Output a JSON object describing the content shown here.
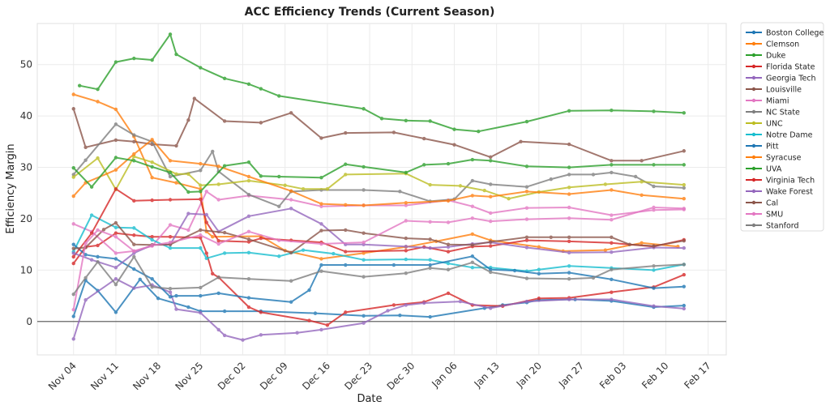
{
  "chart_data": {
    "type": "line",
    "title": "ACC Efficiency Trends (Current Season)",
    "xlabel": "Date",
    "ylabel": "Efficiency Margin",
    "ylim": [
      -6.5,
      58
    ],
    "xlim_days_from_nov04": [
      -6,
      108
    ],
    "yticks": [
      0,
      10,
      20,
      30,
      40,
      50
    ],
    "xticks": [
      "Nov 04",
      "Nov 11",
      "Nov 18",
      "Nov 25",
      "Dec 02",
      "Dec 09",
      "Dec 16",
      "Dec 23",
      "Dec 30",
      "Jan 06",
      "Jan 13",
      "Jan 20",
      "Jan 27",
      "Feb 03",
      "Feb 10",
      "Feb 17"
    ],
    "grid": true,
    "reference_line_y": 0,
    "legend_position": "outside-right",
    "series": [
      {
        "name": "Boston College",
        "color": "#1f77b4",
        "x": [
          0,
          2,
          4,
          7,
          11,
          14,
          19,
          21,
          25,
          31,
          40,
          48,
          54,
          59,
          68,
          71,
          75,
          77,
          83,
          89,
          96,
          101
        ],
        "y": [
          1,
          8,
          6,
          1.8,
          8.2,
          4.5,
          2.8,
          2,
          2,
          2,
          1.6,
          1.1,
          1.2,
          0.9,
          2.6,
          3.2,
          3.7,
          4.2,
          4.3,
          4,
          2.8,
          3.1
        ]
      },
      {
        "name": "Clemson",
        "color": "#ff7f0e",
        "x": [
          0,
          4,
          7,
          10,
          13,
          17,
          21,
          22,
          23,
          31,
          35,
          41,
          48,
          55,
          60,
          66,
          69,
          77,
          81,
          88,
          94,
          100
        ],
        "y": [
          44.2,
          42.8,
          41.3,
          36,
          28,
          27,
          25.8,
          17.5,
          16.5,
          16.6,
          13.8,
          12.2,
          13.3,
          14.5,
          15.6,
          17,
          15.8,
          14.5,
          13.7,
          13.9,
          15.3,
          14.6
        ]
      },
      {
        "name": "Duke",
        "color": "#2ca02c",
        "x": [
          1,
          4,
          7,
          10,
          13,
          16,
          17,
          21,
          25,
          29,
          31,
          34,
          48,
          51,
          55,
          59,
          63,
          67,
          75,
          82,
          89,
          96,
          101
        ],
        "y": [
          45.9,
          45.2,
          50.5,
          51.2,
          50.9,
          55.9,
          52,
          49.4,
          47.3,
          46.2,
          45.3,
          43.9,
          41.4,
          39.5,
          39.1,
          39,
          37.4,
          37,
          38.9,
          41,
          41.1,
          40.9,
          40.6
        ]
      },
      {
        "name": "Florida State",
        "color": "#d62728",
        "x": [
          0,
          2,
          4,
          7,
          10,
          13,
          16,
          21,
          22,
          23,
          24,
          29,
          31,
          39,
          42,
          45,
          53,
          58,
          62,
          66,
          71,
          77,
          82,
          89,
          96,
          101
        ],
        "y": [
          11.3,
          14.5,
          14.8,
          17.2,
          16.8,
          16.5,
          16.5,
          16.3,
          13.3,
          9.3,
          8.6,
          2.8,
          1.8,
          0.2,
          -0.7,
          1.8,
          3.2,
          3.8,
          5.5,
          3.2,
          3,
          4.5,
          4.6,
          5.7,
          6.7,
          9.1
        ]
      },
      {
        "name": "Georgia Tech",
        "color": "#9467bd",
        "x": [
          0,
          2,
          7,
          10,
          13,
          16,
          17,
          21,
          24,
          25,
          28,
          31,
          37,
          41,
          48,
          52,
          55,
          58,
          64,
          69,
          75,
          82,
          89,
          96,
          101
        ],
        "y": [
          -3.4,
          4.2,
          8.3,
          6.5,
          7.1,
          5.7,
          2.4,
          1.7,
          -1.6,
          -2.7,
          -3.6,
          -2.6,
          -2.2,
          -1.6,
          -0.3,
          2.1,
          3.2,
          3.6,
          3.9,
          2.6,
          3.9,
          4.3,
          4.3,
          3,
          2.5
        ]
      },
      {
        "name": "Louisville",
        "color": "#8c564b",
        "x": [
          0,
          2,
          7,
          10,
          13,
          17,
          19,
          20,
          25,
          31,
          36,
          41,
          45,
          53,
          58,
          63,
          69,
          74,
          82,
          89,
          94,
          101
        ],
        "y": [
          41.4,
          33.9,
          35.3,
          35,
          34.5,
          34.2,
          39.2,
          43.4,
          39,
          38.7,
          40.6,
          35.7,
          36.7,
          36.8,
          35.6,
          34.4,
          32,
          35,
          34.5,
          31.3,
          31.3,
          33.2
        ]
      },
      {
        "name": "Miami",
        "color": "#e377c2",
        "x": [
          0,
          3,
          7,
          10,
          13,
          16,
          19,
          22,
          24,
          29,
          36,
          41,
          48,
          55,
          62,
          66,
          69,
          75,
          82,
          89,
          96,
          101
        ],
        "y": [
          19,
          17.5,
          13.3,
          13.7,
          14.7,
          18.8,
          17.8,
          25.3,
          23.7,
          24.5,
          23.7,
          22.4,
          22.6,
          22.6,
          23.6,
          22.4,
          21.1,
          22.1,
          22.2,
          20.7,
          21.7,
          21.8
        ]
      },
      {
        "name": "NC State",
        "color": "#7f7f7f",
        "x": [
          0,
          2,
          7,
          10,
          13,
          16,
          21,
          23,
          24,
          29,
          34,
          36,
          41,
          48,
          54,
          59,
          63,
          66,
          69,
          75,
          79,
          82,
          86,
          89,
          93,
          96,
          101
        ],
        "y": [
          28.6,
          31.4,
          38.4,
          36.3,
          35,
          28.2,
          29.4,
          33.1,
          29.2,
          24.7,
          22.4,
          25.3,
          25.6,
          25.6,
          25.3,
          23.4,
          23.8,
          27.4,
          26.7,
          26.2,
          27.7,
          28.6,
          28.6,
          29,
          28.2,
          26.3,
          26
        ]
      },
      {
        "name": "UNC",
        "color": "#bcbd22",
        "x": [
          0,
          4,
          7,
          10,
          13,
          17,
          19,
          21,
          24,
          29,
          35,
          38,
          42,
          45,
          55,
          59,
          64,
          68,
          72,
          77,
          82,
          88,
          94,
          101
        ],
        "y": [
          28.1,
          31.8,
          25.7,
          32.1,
          31,
          28.7,
          28.7,
          26.5,
          26.7,
          27.4,
          26.5,
          25.8,
          25.8,
          28.6,
          28.8,
          26.6,
          26.4,
          25.5,
          23.9,
          25.2,
          26.1,
          26.7,
          27.2,
          26.6
        ]
      },
      {
        "name": "Notre Dame",
        "color": "#17becf",
        "x": [
          0,
          3,
          7,
          10,
          13,
          16,
          21,
          22,
          25,
          29,
          34,
          38,
          43,
          48,
          55,
          59,
          62,
          66,
          69,
          75,
          77,
          82,
          89,
          96,
          101
        ],
        "y": [
          13.6,
          20.7,
          18.3,
          18.2,
          15.9,
          14.3,
          14.3,
          12.3,
          13.3,
          13.4,
          12.7,
          13.9,
          13.2,
          12,
          12.1,
          12,
          11.3,
          10.5,
          10.5,
          9.8,
          10.1,
          10.8,
          10.4,
          10,
          11.1
        ]
      },
      {
        "name": "Pitt",
        "color": "#1f77b4",
        "x": [
          0,
          2,
          4,
          7,
          10,
          13,
          16,
          17,
          21,
          24,
          29,
          36,
          39,
          41,
          45,
          53,
          59,
          66,
          69,
          73,
          77,
          82,
          89,
          96,
          101
        ],
        "y": [
          15,
          13,
          12.6,
          12.2,
          10.2,
          8.3,
          4.8,
          5,
          5,
          5.5,
          4.6,
          3.8,
          6.1,
          11,
          11,
          11,
          11,
          12.7,
          10.1,
          9.9,
          9.3,
          9.5,
          8.2,
          6.5,
          6.8
        ]
      },
      {
        "name": "Syracuse",
        "color": "#ff7f0e",
        "x": [
          0,
          2,
          7,
          10,
          13,
          16,
          21,
          24,
          29,
          36,
          41,
          45,
          48,
          55,
          62,
          66,
          69,
          75,
          82,
          89,
          94,
          101
        ],
        "y": [
          24.4,
          27,
          29.5,
          32.6,
          35.4,
          31.3,
          30.7,
          30.2,
          28.2,
          25.4,
          22.9,
          22.7,
          22.6,
          23.1,
          23.5,
          24.5,
          24.3,
          25.3,
          24.8,
          25.6,
          24.6,
          23.9
        ]
      },
      {
        "name": "UVA",
        "color": "#2ca02c",
        "x": [
          0,
          3,
          7,
          10,
          13,
          16,
          19,
          21,
          25,
          29,
          31,
          34,
          41,
          45,
          48,
          55,
          58,
          62,
          66,
          69,
          75,
          82,
          89,
          96,
          101
        ],
        "y": [
          29.9,
          26.2,
          31.9,
          31.3,
          30.1,
          29,
          25.2,
          25.3,
          30.3,
          31,
          28.3,
          28.2,
          28,
          30.6,
          30.1,
          29,
          30.5,
          30.7,
          31.5,
          31.3,
          30.2,
          30,
          30.5,
          30.5,
          30.5
        ]
      },
      {
        "name": "Virginia Tech",
        "color": "#d62728",
        "x": [
          0,
          3,
          7,
          10,
          13,
          16,
          21,
          22,
          24,
          29,
          31,
          36,
          41,
          45,
          55,
          58,
          62,
          66,
          69,
          75,
          82,
          89,
          96,
          101
        ],
        "y": [
          12.6,
          17.2,
          25.8,
          23.5,
          23.6,
          23.7,
          23.8,
          19.3,
          15.7,
          15.5,
          16.2,
          15.8,
          15.4,
          13.6,
          13.8,
          14.5,
          13.6,
          14.6,
          14.7,
          15.8,
          15.6,
          15.3,
          14.6,
          15.9
        ]
      },
      {
        "name": "Wake Forest",
        "color": "#9467bd",
        "x": [
          0,
          3,
          7,
          10,
          13,
          16,
          19,
          22,
          24,
          29,
          36,
          41,
          45,
          48,
          55,
          59,
          62,
          66,
          69,
          75,
          82,
          89,
          96,
          101
        ],
        "y": [
          13.3,
          12,
          10.5,
          13.3,
          14.9,
          15,
          21,
          20.8,
          17.5,
          20.5,
          22,
          19,
          15,
          15,
          14.6,
          14.3,
          14.5,
          15.1,
          15.4,
          14.4,
          13.4,
          13.5,
          14.4,
          14.3
        ]
      },
      {
        "name": "Cal",
        "color": "#8c564b",
        "x": [
          0,
          2,
          5,
          7,
          10,
          13,
          16,
          21,
          25,
          29,
          36,
          41,
          45,
          48,
          55,
          59,
          62,
          66,
          69,
          75,
          79,
          82,
          89,
          92,
          96,
          101
        ],
        "y": [
          14.2,
          14.4,
          17.9,
          19.2,
          15,
          14.9,
          15,
          17.8,
          17.3,
          16,
          13.4,
          17.7,
          17.8,
          17.2,
          16.2,
          16,
          15,
          14.9,
          15.5,
          16.4,
          16.4,
          16.4,
          16.4,
          15,
          14.7,
          15.7
        ]
      },
      {
        "name": "SMU",
        "color": "#e377c2",
        "x": [
          0,
          2,
          4,
          7,
          10,
          13,
          16,
          21,
          24,
          29,
          34,
          41,
          48,
          55,
          59,
          62,
          66,
          69,
          75,
          82,
          89,
          96,
          101
        ],
        "y": [
          2.3,
          15.2,
          17.8,
          16.5,
          13.7,
          14.8,
          15.4,
          16.8,
          15.1,
          17.5,
          15.8,
          15.1,
          15.4,
          19.6,
          19.4,
          19.3,
          20.1,
          19.5,
          19.9,
          20.1,
          19.8,
          22.2,
          22
        ]
      },
      {
        "name": "Stanford",
        "color": "#7f7f7f",
        "x": [
          0,
          2,
          4,
          7,
          10,
          13,
          16,
          21,
          24,
          29,
          36,
          41,
          48,
          55,
          59,
          62,
          66,
          69,
          75,
          82,
          86,
          89,
          96,
          101
        ],
        "y": [
          5.3,
          8.5,
          11.6,
          7.2,
          12.6,
          6.7,
          6.4,
          6.6,
          8.6,
          8.3,
          7.9,
          9.8,
          8.7,
          9.4,
          10.4,
          10.1,
          11.5,
          9.6,
          8.4,
          8.3,
          8.5,
          10.1,
          10.8,
          11.1
        ]
      }
    ]
  }
}
